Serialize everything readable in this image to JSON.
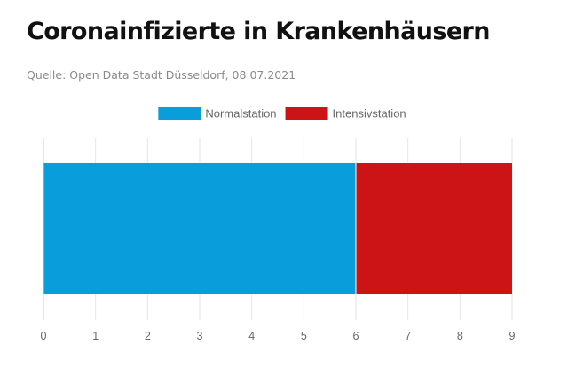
{
  "header": {
    "title": "Coronainfizierte in Krankenhäusern",
    "source": "Quelle: Open Data Stadt Düsseldorf, 08.07.2021"
  },
  "chart_data": {
    "type": "bar",
    "orientation": "horizontal",
    "stacked": true,
    "categories": [
      ""
    ],
    "series": [
      {
        "name": "Normalstation",
        "values": [
          6
        ],
        "color": "#0a9ddc"
      },
      {
        "name": "Intensivstation",
        "values": [
          3
        ],
        "color": "#cc1416"
      }
    ],
    "xlim": [
      0,
      9
    ],
    "xticks": [
      "0",
      "1",
      "2",
      "3",
      "4",
      "5",
      "6",
      "7",
      "8",
      "9"
    ],
    "grid": true,
    "legend": "top-center"
  }
}
